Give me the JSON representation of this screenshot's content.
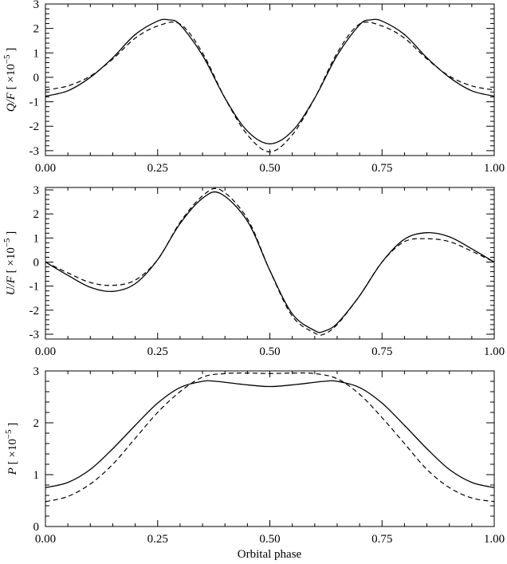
{
  "chart_data": [
    {
      "type": "line",
      "ylabel": "Q/F [ ×10",
      "ylabel_exp": "−5",
      "ylabel_close": " ]",
      "xlim": [
        0,
        1
      ],
      "ylim": [
        -3.2,
        3.0
      ],
      "xticks": [
        0.0,
        0.25,
        0.5,
        0.75,
        1.0
      ],
      "xtick_labels": [
        "0.00",
        "0.25",
        "0.50",
        "0.75",
        "1.00"
      ],
      "yticks": [
        -3,
        -2,
        -1,
        0,
        1,
        2,
        3
      ],
      "ytick_labels": [
        "-3",
        "-2",
        "-1",
        "0",
        "1",
        "2",
        "3"
      ],
      "series": [
        {
          "style": "solid",
          "x": [
            0.0,
            0.05,
            0.1,
            0.15,
            0.2,
            0.25,
            0.275,
            0.3,
            0.35,
            0.4,
            0.45,
            0.5,
            0.55,
            0.6,
            0.65,
            0.7,
            0.725,
            0.75,
            0.8,
            0.85,
            0.9,
            0.95,
            1.0
          ],
          "y": [
            -0.77,
            -0.55,
            0.0,
            0.8,
            1.75,
            2.3,
            2.35,
            2.15,
            0.9,
            -0.85,
            -2.2,
            -2.72,
            -2.2,
            -0.85,
            0.9,
            2.15,
            2.35,
            2.3,
            1.75,
            0.8,
            0.0,
            -0.55,
            -0.77
          ]
        },
        {
          "style": "dashed",
          "x": [
            0.0,
            0.05,
            0.1,
            0.15,
            0.2,
            0.25,
            0.3,
            0.35,
            0.4,
            0.45,
            0.5,
            0.55,
            0.6,
            0.65,
            0.7,
            0.75,
            0.8,
            0.85,
            0.9,
            0.95,
            1.0
          ],
          "y": [
            -0.52,
            -0.35,
            0.05,
            0.75,
            1.6,
            2.1,
            2.18,
            1.0,
            -0.85,
            -2.35,
            -3.05,
            -2.35,
            -0.85,
            1.0,
            2.18,
            2.1,
            1.6,
            0.75,
            0.05,
            -0.35,
            -0.52
          ]
        }
      ]
    },
    {
      "type": "line",
      "ylabel": "U/F [ ×10",
      "ylabel_exp": "−5",
      "ylabel_close": " ]",
      "xlim": [
        0,
        1
      ],
      "ylim": [
        -3.2,
        3.1
      ],
      "xticks": [
        0.0,
        0.25,
        0.5,
        0.75,
        1.0
      ],
      "xtick_labels": [
        "0.00",
        "0.25",
        "0.50",
        "0.75",
        "1.00"
      ],
      "yticks": [
        -3,
        -2,
        -1,
        0,
        1,
        2,
        3
      ],
      "ytick_labels": [
        "-3",
        "-2",
        "-1",
        "0",
        "1",
        "2",
        "3"
      ],
      "series": [
        {
          "style": "solid",
          "x": [
            0.0,
            0.05,
            0.1,
            0.15,
            0.2,
            0.25,
            0.3,
            0.35,
            0.39,
            0.45,
            0.5,
            0.55,
            0.6,
            0.62,
            0.65,
            0.7,
            0.75,
            0.8,
            0.85,
            0.9,
            0.95,
            1.0
          ],
          "y": [
            0.0,
            -0.55,
            -1.05,
            -1.22,
            -0.9,
            0.1,
            1.6,
            2.65,
            2.85,
            1.7,
            -0.35,
            -2.15,
            -2.85,
            -2.88,
            -2.55,
            -1.4,
            0.0,
            0.95,
            1.22,
            1.05,
            0.55,
            0.0
          ]
        },
        {
          "style": "dashed",
          "x": [
            0.0,
            0.05,
            0.1,
            0.15,
            0.2,
            0.25,
            0.3,
            0.35,
            0.39,
            0.45,
            0.5,
            0.55,
            0.6,
            0.62,
            0.65,
            0.7,
            0.75,
            0.8,
            0.85,
            0.9,
            0.95,
            1.0
          ],
          "y": [
            0.0,
            -0.45,
            -0.85,
            -0.97,
            -0.75,
            0.1,
            1.65,
            2.75,
            3.0,
            1.8,
            -0.35,
            -2.25,
            -2.95,
            -3.0,
            -2.6,
            -1.4,
            0.0,
            0.85,
            0.97,
            0.85,
            0.45,
            0.0
          ]
        }
      ]
    },
    {
      "type": "line",
      "ylabel": "P [ ×10",
      "ylabel_exp": "−5",
      "ylabel_close": " ]",
      "xlabel": "Orbital phase",
      "xlim": [
        0,
        1
      ],
      "ylim": [
        0,
        3.0
      ],
      "xticks": [
        0.0,
        0.25,
        0.5,
        0.75,
        1.0
      ],
      "xtick_labels": [
        "0.00",
        "0.25",
        "0.50",
        "0.75",
        "1.00"
      ],
      "yticks": [
        0,
        1,
        2,
        3
      ],
      "ytick_labels": [
        "0",
        "1",
        "2",
        "3"
      ],
      "series": [
        {
          "style": "solid",
          "x": [
            0.0,
            0.05,
            0.1,
            0.15,
            0.2,
            0.25,
            0.3,
            0.35,
            0.38,
            0.44,
            0.5,
            0.56,
            0.62,
            0.65,
            0.7,
            0.75,
            0.8,
            0.85,
            0.9,
            0.95,
            1.0
          ],
          "y": [
            0.75,
            0.85,
            1.1,
            1.5,
            1.95,
            2.38,
            2.68,
            2.8,
            2.8,
            2.74,
            2.7,
            2.74,
            2.8,
            2.8,
            2.68,
            2.38,
            1.95,
            1.5,
            1.1,
            0.85,
            0.75
          ]
        },
        {
          "style": "dashed",
          "x": [
            0.0,
            0.05,
            0.1,
            0.15,
            0.2,
            0.25,
            0.3,
            0.35,
            0.4,
            0.45,
            0.5,
            0.55,
            0.6,
            0.65,
            0.7,
            0.75,
            0.8,
            0.85,
            0.9,
            0.95,
            1.0
          ],
          "y": [
            0.48,
            0.58,
            0.82,
            1.2,
            1.7,
            2.2,
            2.6,
            2.88,
            2.95,
            2.96,
            2.95,
            2.96,
            2.95,
            2.85,
            2.55,
            2.1,
            1.6,
            1.1,
            0.75,
            0.55,
            0.48
          ]
        }
      ]
    }
  ]
}
